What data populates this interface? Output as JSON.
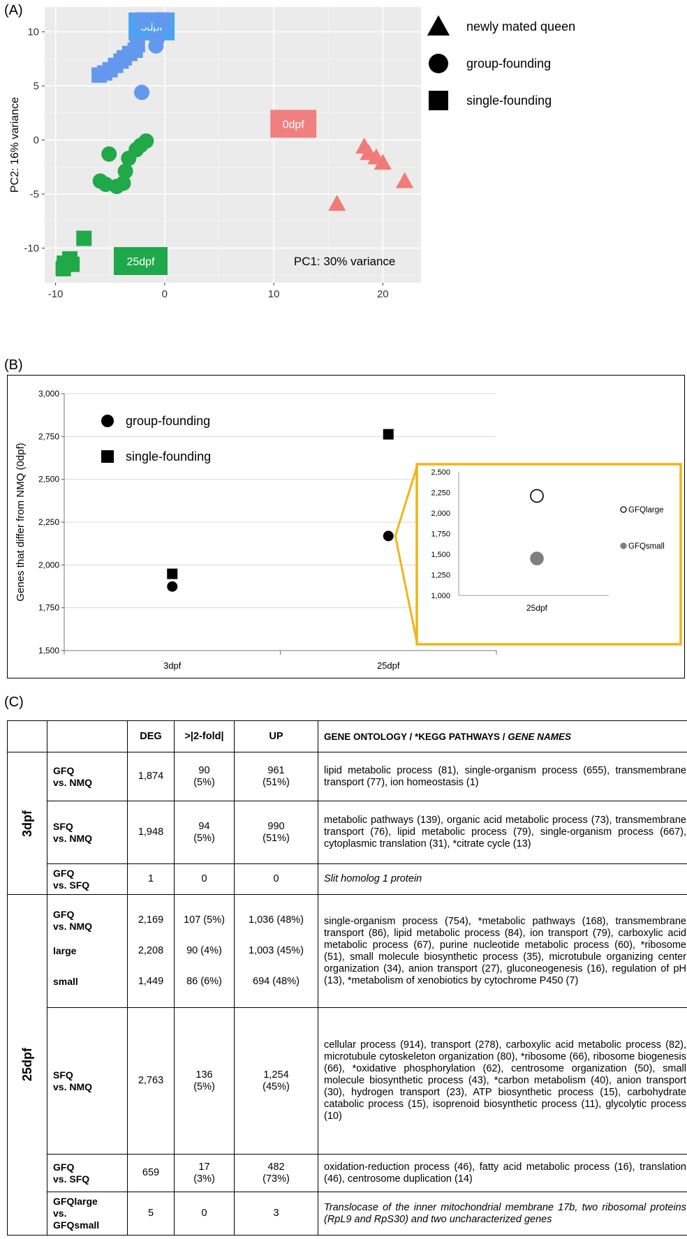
{
  "panels": {
    "a": "(A)",
    "b": "(B)",
    "c": "(C)"
  },
  "chart_data": [
    {
      "type": "scatter",
      "panel": "A",
      "xlabel": "PC1: 30% variance",
      "ylabel": "PC2: 16% variance",
      "xlim": [
        -11,
        23.5
      ],
      "ylim": [
        -13.2,
        12.3
      ],
      "xticks": [
        -10,
        0,
        10,
        20
      ],
      "xtick_labels": [
        "-10",
        "0",
        "10",
        "20"
      ],
      "yticks": [
        10,
        5,
        0,
        -5,
        -10
      ],
      "ytick_labels": [
        "10",
        "5",
        "0",
        "-5",
        "-10"
      ],
      "grid": true,
      "background": "#ebebeb",
      "legend": {
        "placement": "right",
        "entries": [
          {
            "shape": "triangle",
            "label": "newly mated queen"
          },
          {
            "shape": "circle",
            "label": "group-founding"
          },
          {
            "shape": "square",
            "label": "single-founding"
          }
        ]
      },
      "group_labels": [
        {
          "text": "3dpf",
          "color": "#4fa1f2",
          "x": -1.2,
          "y": 10.5
        },
        {
          "text": "0dpf",
          "color": "#f08080",
          "x": 11.8,
          "y": 1.5
        },
        {
          "text": "25dpf",
          "color": "#1fa84a",
          "x": -2.2,
          "y": -11.2
        }
      ],
      "series": [
        {
          "group": "3dpf",
          "color": "#6398ee",
          "shape": "square",
          "x": [
            -1.9,
            -0.3,
            -6,
            -5.5,
            -5,
            -4.5,
            -4,
            -3.7,
            -3.2,
            -2.7,
            -2.5
          ],
          "y": [
            11.1,
            11.1,
            6.0,
            6.2,
            6.5,
            6.9,
            7.3,
            7.6,
            8.0,
            8.3,
            8.8
          ]
        },
        {
          "group": "3dpf",
          "color": "#6398ee",
          "shape": "circle",
          "x": [
            -0.7,
            -0.8,
            -2.1
          ],
          "y": [
            9.3,
            8.7,
            4.4
          ]
        },
        {
          "group": "0dpf",
          "color": "#f07b78",
          "shape": "triangle",
          "x": [
            18.3,
            18.7,
            19.4,
            20,
            22,
            15.8
          ],
          "y": [
            -0.6,
            -1.2,
            -1.6,
            -2.1,
            -3.8,
            -5.9
          ]
        },
        {
          "group": "25dpf",
          "color": "#21a848",
          "shape": "circle",
          "x": [
            -5.1,
            -1.7,
            -2.2,
            -2.6,
            -3.3,
            -3.6,
            -3.8,
            -5.9,
            -5.4,
            -4.4
          ],
          "y": [
            -1.3,
            -0.1,
            -0.5,
            -0.9,
            -1.7,
            -2.9,
            -4,
            -3.8,
            -4.1,
            -4.3
          ]
        },
        {
          "group": "25dpf",
          "color": "#21a848",
          "shape": "square",
          "x": [
            -7.4,
            -8.7,
            -9.2,
            -9.3,
            -8.5
          ],
          "y": [
            -9.1,
            -11,
            -11.4,
            -11.9,
            -11.5
          ]
        }
      ]
    },
    {
      "type": "scatter",
      "panel": "B",
      "ylabel": "Genes that differ from NMQ (0dpf)",
      "categories": [
        "3dpf",
        "25dpf"
      ],
      "ylim": [
        1500,
        3000
      ],
      "yticks": [
        1500,
        1750,
        2000,
        2250,
        2500,
        2750,
        3000
      ],
      "ytick_labels": [
        "1,500",
        "1,750",
        "2,000",
        "2,250",
        "2,500",
        "2,750",
        "3,000"
      ],
      "grid": true,
      "legend": {
        "placement": "top-left",
        "entries": [
          {
            "shape": "circle",
            "label": "group-founding"
          },
          {
            "shape": "square",
            "label": "single-founding"
          }
        ]
      },
      "series": [
        {
          "name": "group-founding",
          "shape": "circle",
          "values": [
            1874,
            2169
          ]
        },
        {
          "name": "single-founding",
          "shape": "square",
          "values": [
            1948,
            2763
          ]
        }
      ]
    },
    {
      "type": "scatter",
      "panel": "B-inset",
      "categories": [
        "25dpf"
      ],
      "ylim": [
        1000,
        2500
      ],
      "yticks": [
        1000,
        1250,
        1500,
        1750,
        2000,
        2250,
        2500
      ],
      "ytick_labels": [
        "1,000",
        "1,250",
        "1,500",
        "1,750",
        "2,000",
        "2,250",
        "2,500"
      ],
      "grid": false,
      "legend": {
        "placement": "right"
      },
      "series": [
        {
          "name": "GFQlarge",
          "shape": "open-circle",
          "values": [
            2208
          ]
        },
        {
          "name": "GFQsmall",
          "shape": "grey-circle",
          "values": [
            1449
          ]
        }
      ]
    }
  ],
  "table": {
    "headers": [
      "DEG",
      ">|2-fold|",
      "UP",
      "GENE ONTOLOGY / *KEGG PATHWAYS / ",
      "GENE NAMES"
    ],
    "groups": {
      "g3": "3dpf",
      "g25": "25dpf"
    },
    "rows": {
      "r1": {
        "cmp1": "GFQ",
        "cmp2": "vs. NMQ",
        "deg": "1,874",
        "fold1": "90",
        "fold2": "(5%)",
        "up1": "961",
        "up2": "(51%)",
        "text": "lipid metabolic process (81), single-organism process (655), transmembrane transport (77), ion homeostasis (1)"
      },
      "r2": {
        "cmp1": "SFQ",
        "cmp2": "vs. NMQ",
        "deg": "1,948",
        "fold1": "94",
        "fold2": "(5%)",
        "up1": "990",
        "up2": "(51%)",
        "text": "metabolic pathways (139), organic acid metabolic process (73), transmembrane transport (76), lipid metabolic process (79), single-organism process (667), cytoplasmic translation (31), *citrate cycle (13)"
      },
      "r3": {
        "cmp1": "GFQ",
        "cmp2": "vs. SFQ",
        "deg": "1",
        "fold": "0",
        "up": "0",
        "text": "Slit homolog 1 protein"
      },
      "r4": {
        "cmpa": "GFQ",
        "cmpb": "vs. NMQ",
        "cmpc": "large",
        "cmpd": "small",
        "deg1": "2,169",
        "deg2": "2,208",
        "deg3": "1,449",
        "fold1": "107 (5%)",
        "fold2": "90 (4%)",
        "fold3": "86 (6%)",
        "up1": "1,036 (48%)",
        "up2": "1,003 (45%)",
        "up3": "694 (48%)",
        "text": "single-organism process (754), *metabolic pathways (168), transmembrane transport (86), lipid metabolic process (84), ion transport (79), carboxylic acid metabolic process (67), purine nucleotide metabolic process (60), *ribosome (51), small molecule biosynthetic process (35), microtubule organizing center organization (34), anion transport (27), gluconeogenesis (16), regulation of pH (13), *metabolism of xenobiotics by cytochrome P450 (7)"
      },
      "r5": {
        "cmp1": "SFQ",
        "cmp2": "vs. NMQ",
        "deg": "2,763",
        "fold1": "136",
        "fold2": "(5%)",
        "up1": "1,254",
        "up2": "(45%)",
        "text": "cellular process (914), transport (278), carboxylic acid metabolic process (82), microtubule cytoskeleton organization (80), *ribosome (66), ribosome biogenesis (66), *oxidative phosphorylation (62), centrosome organization (50), small molecule biosynthetic process (43), *carbon metabolism (40), anion transport (30), hydrogen transport (23), ATP biosynthetic process (15), carbohydrate catabolic process (15), isoprenoid biosynthetic process (11), glycolytic process (10)"
      },
      "r6": {
        "cmp1": "GFQ",
        "cmp2": "vs. SFQ",
        "deg": "659",
        "fold1": "17",
        "fold2": "(3%)",
        "up1": "482",
        "up2": "(73%)",
        "text": "oxidation-reduction process (46), fatty acid metabolic process (16), translation (46), centrosome duplication (14)"
      },
      "r7": {
        "cmp1": "GFQlarge",
        "cmp2": "vs.",
        "cmp3": "GFQsmall",
        "deg": "5",
        "fold": "0",
        "up": "3",
        "text": "Translocase of the inner mitochondrial membrane 17b, two ribosomal proteins (RpL9 and RpS30) and two uncharacterized genes"
      }
    }
  }
}
